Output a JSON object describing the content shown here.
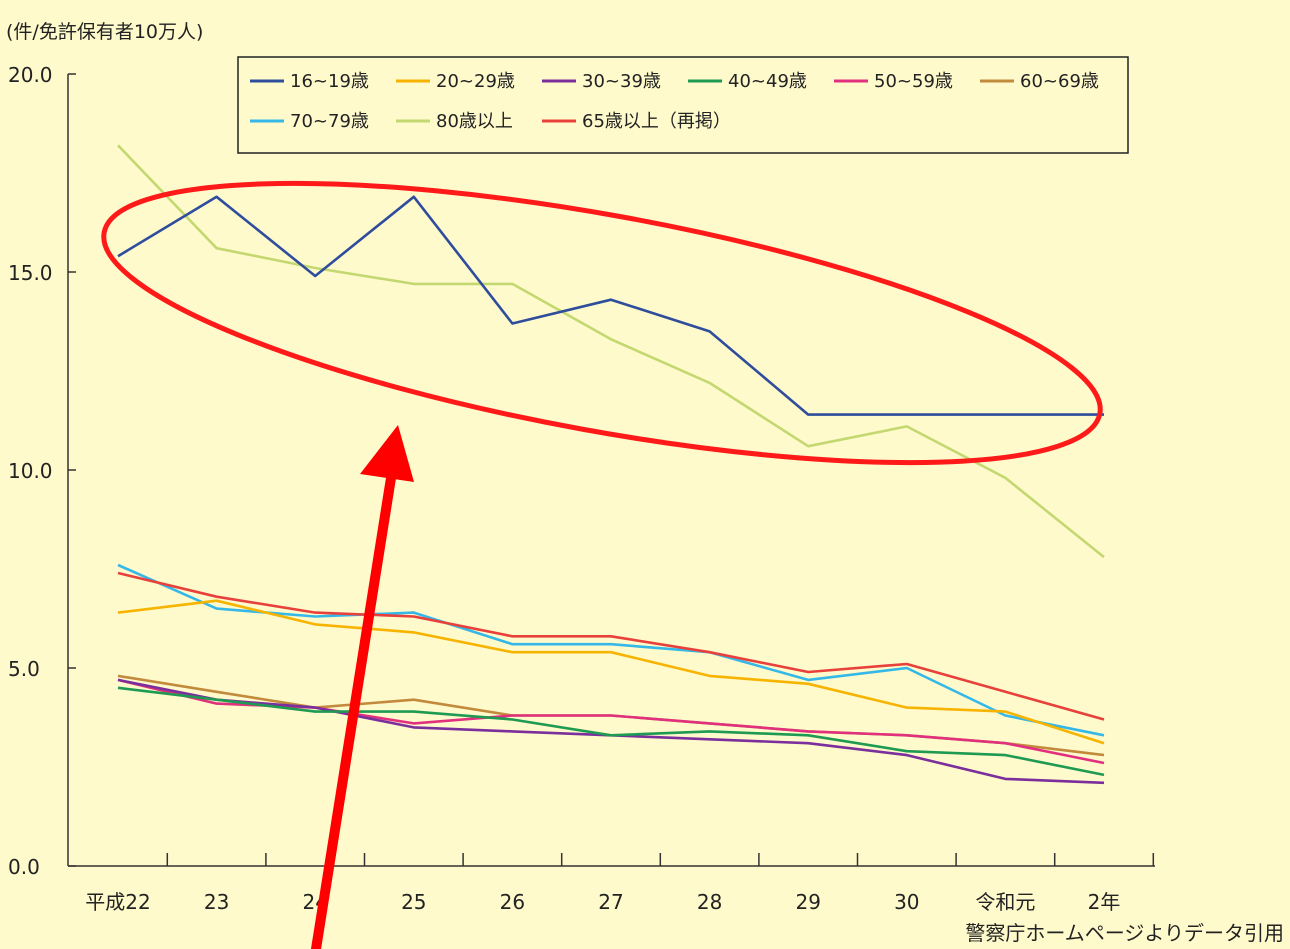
{
  "chart_data": {
    "type": "line",
    "y_unit_label": "(件/免許保有者10万人)",
    "ylim": [
      0,
      20
    ],
    "y_ticks": [
      "0.0",
      "5.0",
      "10.0",
      "15.0",
      "20.0"
    ],
    "categories": [
      "平成22",
      "23",
      "24",
      "25",
      "26",
      "27",
      "28",
      "29",
      "30",
      "令和元",
      "2年"
    ],
    "legend_position": "top",
    "grid": false,
    "series": [
      {
        "name": "16~19歳",
        "color": "#2e4d9c",
        "values": [
          15.4,
          16.9,
          14.9,
          16.9,
          13.7,
          14.3,
          13.5,
          11.4,
          11.4,
          11.4,
          11.4
        ]
      },
      {
        "name": "20~29歳",
        "color": "#f6b400",
        "values": [
          6.4,
          6.7,
          6.1,
          5.9,
          5.4,
          5.4,
          4.8,
          4.6,
          4.0,
          3.9,
          3.1
        ]
      },
      {
        "name": "30~39歳",
        "color": "#7b2f9c",
        "values": [
          4.7,
          4.2,
          4.0,
          3.5,
          3.4,
          3.3,
          3.2,
          3.1,
          2.8,
          2.2,
          2.1
        ]
      },
      {
        "name": "40~49歳",
        "color": "#1e9a52",
        "values": [
          4.5,
          4.2,
          3.9,
          3.9,
          3.7,
          3.3,
          3.4,
          3.3,
          2.9,
          2.8,
          2.3
        ]
      },
      {
        "name": "50~59歳",
        "color": "#e0307e",
        "values": [
          4.7,
          4.1,
          4.0,
          3.6,
          3.8,
          3.8,
          3.6,
          3.4,
          3.3,
          3.1,
          2.6
        ]
      },
      {
        "name": "60~69歳",
        "color": "#c28a3c",
        "values": [
          4.8,
          4.4,
          4.0,
          4.2,
          3.8,
          3.8,
          3.6,
          3.4,
          3.3,
          3.1,
          2.8
        ]
      },
      {
        "name": "70~79歳",
        "color": "#35b8e8",
        "values": [
          7.6,
          6.5,
          6.3,
          6.4,
          5.6,
          5.6,
          5.4,
          4.7,
          5.0,
          3.8,
          3.3
        ]
      },
      {
        "name": "80歳以上",
        "color": "#c3d870",
        "values": [
          18.2,
          15.6,
          15.1,
          14.7,
          14.7,
          13.3,
          12.2,
          10.6,
          11.1,
          9.8,
          7.8
        ]
      },
      {
        "name": "65歳以上（再掲）",
        "color": "#e8413c",
        "values": [
          7.4,
          6.8,
          6.4,
          6.3,
          5.8,
          5.8,
          5.4,
          4.9,
          5.1,
          4.4,
          3.7
        ]
      }
    ]
  },
  "source_note": "警察庁ホームページよりデータ引用",
  "annotation": {
    "ellipse_color": "#ff1a1a",
    "arrow_color": "#ff0000"
  }
}
